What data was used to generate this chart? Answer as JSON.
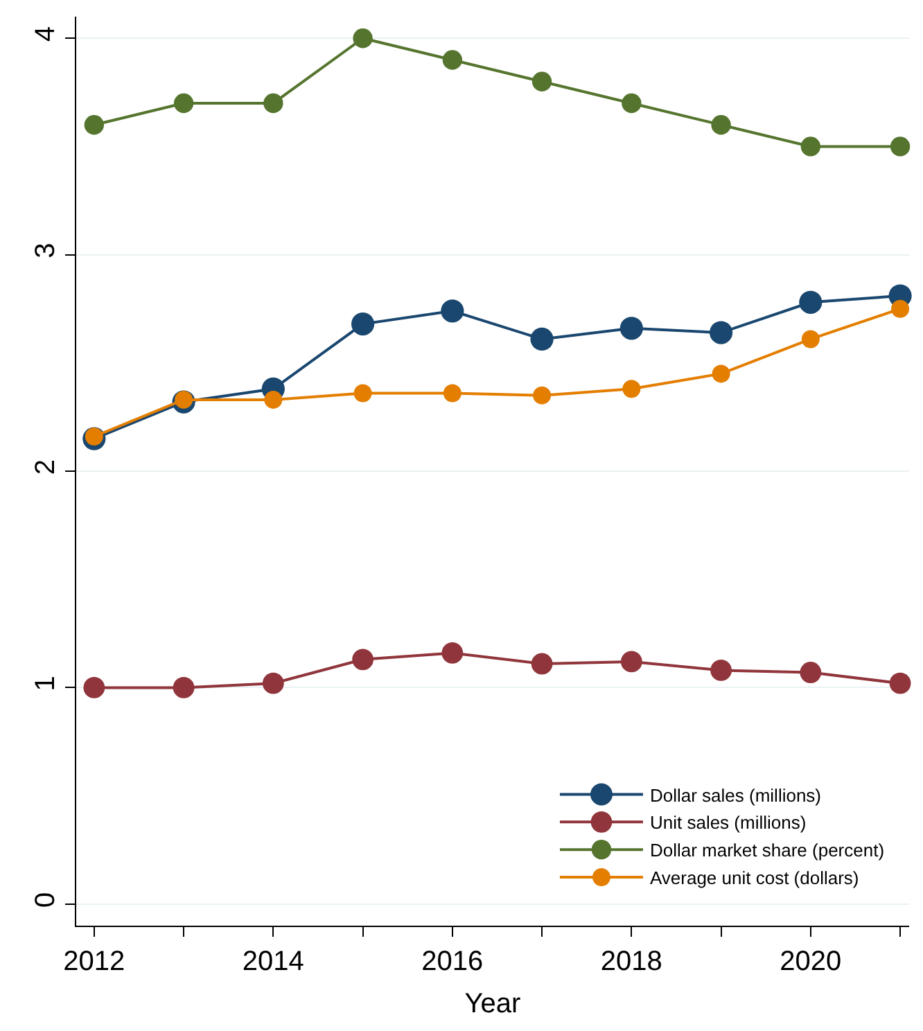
{
  "chart_data": {
    "type": "line",
    "xlabel": "Year",
    "x": [
      2012,
      2013,
      2014,
      2015,
      2016,
      2017,
      2018,
      2019,
      2020,
      2021
    ],
    "series": [
      {
        "name": "Dollar sales (millions)",
        "color": "#1a476f",
        "values": [
          2.15,
          2.32,
          2.38,
          2.68,
          2.74,
          2.61,
          2.66,
          2.64,
          2.78,
          2.81
        ]
      },
      {
        "name": "Unit sales (millions)",
        "color": "#90353b",
        "values": [
          1.0,
          1.0,
          1.02,
          1.13,
          1.16,
          1.11,
          1.12,
          1.08,
          1.07,
          1.02
        ]
      },
      {
        "name": "Dollar market share (percent)",
        "color": "#55752f",
        "values": [
          3.6,
          3.7,
          3.7,
          4.0,
          3.9,
          3.8,
          3.7,
          3.6,
          3.5,
          3.5
        ]
      },
      {
        "name": "Average unit cost (dollars)",
        "color": "#e37e00",
        "values": [
          2.16,
          2.33,
          2.33,
          2.36,
          2.36,
          2.35,
          2.38,
          2.45,
          2.61,
          2.75
        ]
      }
    ],
    "xlim": [
      2011.8,
      2021.1
    ],
    "xticks": [
      2012,
      {
        "value": 2013,
        "label": null
      },
      2014,
      {
        "value": 2015,
        "label": null
      },
      2016,
      {
        "value": 2017,
        "label": null
      },
      2018,
      {
        "value": 2019,
        "label": null
      },
      2020,
      {
        "value": 2021,
        "label": null
      }
    ],
    "ylim": [
      -0.1,
      4.1
    ],
    "yticks": [
      0,
      1,
      2,
      3,
      4
    ],
    "grid": "y",
    "legend": "bottom right",
    "marker": "circle",
    "line_style": "solid"
  }
}
